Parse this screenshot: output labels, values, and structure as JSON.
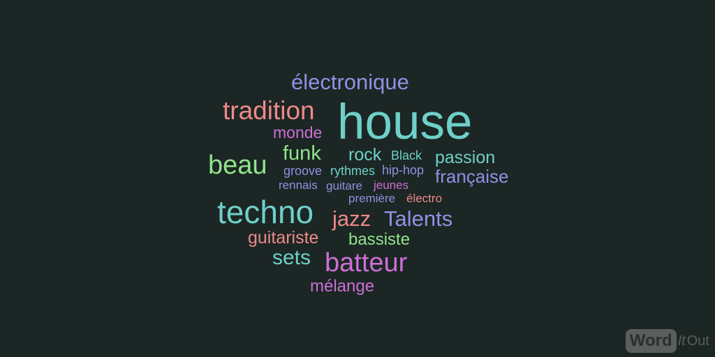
{
  "colors": {
    "background": "#1c2624",
    "teal": "#6ed0c8",
    "salmon": "#ee8a8a",
    "lavender": "#8c93e4",
    "green": "#8fe48a",
    "magenta": "#cc6fd6",
    "logo": "#5a5e5c"
  },
  "words": [
    {
      "text": "électronique",
      "color": "#8c93e4"
    },
    {
      "text": "tradition",
      "color": "#ee8a8a"
    },
    {
      "text": "house",
      "color": "#6ed0c8"
    },
    {
      "text": "monde",
      "color": "#cc6fd6"
    },
    {
      "text": "beau",
      "color": "#8fe48a"
    },
    {
      "text": "funk",
      "color": "#8fe48a"
    },
    {
      "text": "rock",
      "color": "#6ed0c8"
    },
    {
      "text": "Black",
      "color": "#6ed0c8"
    },
    {
      "text": "passion",
      "color": "#6ed0c8"
    },
    {
      "text": "groove",
      "color": "#8c93e4"
    },
    {
      "text": "rythmes",
      "color": "#6ed0c8"
    },
    {
      "text": "hip-hop",
      "color": "#8c93e4"
    },
    {
      "text": "française",
      "color": "#8c93e4"
    },
    {
      "text": "rennais",
      "color": "#8c93e4"
    },
    {
      "text": "guitare",
      "color": "#8c93e4"
    },
    {
      "text": "jeunes",
      "color": "#cc6fd6"
    },
    {
      "text": "première",
      "color": "#8c93e4"
    },
    {
      "text": "électro",
      "color": "#ee8a8a"
    },
    {
      "text": "techno",
      "color": "#6ed0c8"
    },
    {
      "text": "jazz",
      "color": "#ee8a8a"
    },
    {
      "text": "Talents",
      "color": "#8c93e4"
    },
    {
      "text": "guitariste",
      "color": "#ee8a8a"
    },
    {
      "text": "bassiste",
      "color": "#8fe48a"
    },
    {
      "text": "sets",
      "color": "#6ed0c8"
    },
    {
      "text": "batteur",
      "color": "#cc6fd6"
    },
    {
      "text": "mélange",
      "color": "#cc6fd6"
    }
  ],
  "logo": {
    "word": "Word",
    "it": "It",
    "out": "Out"
  }
}
